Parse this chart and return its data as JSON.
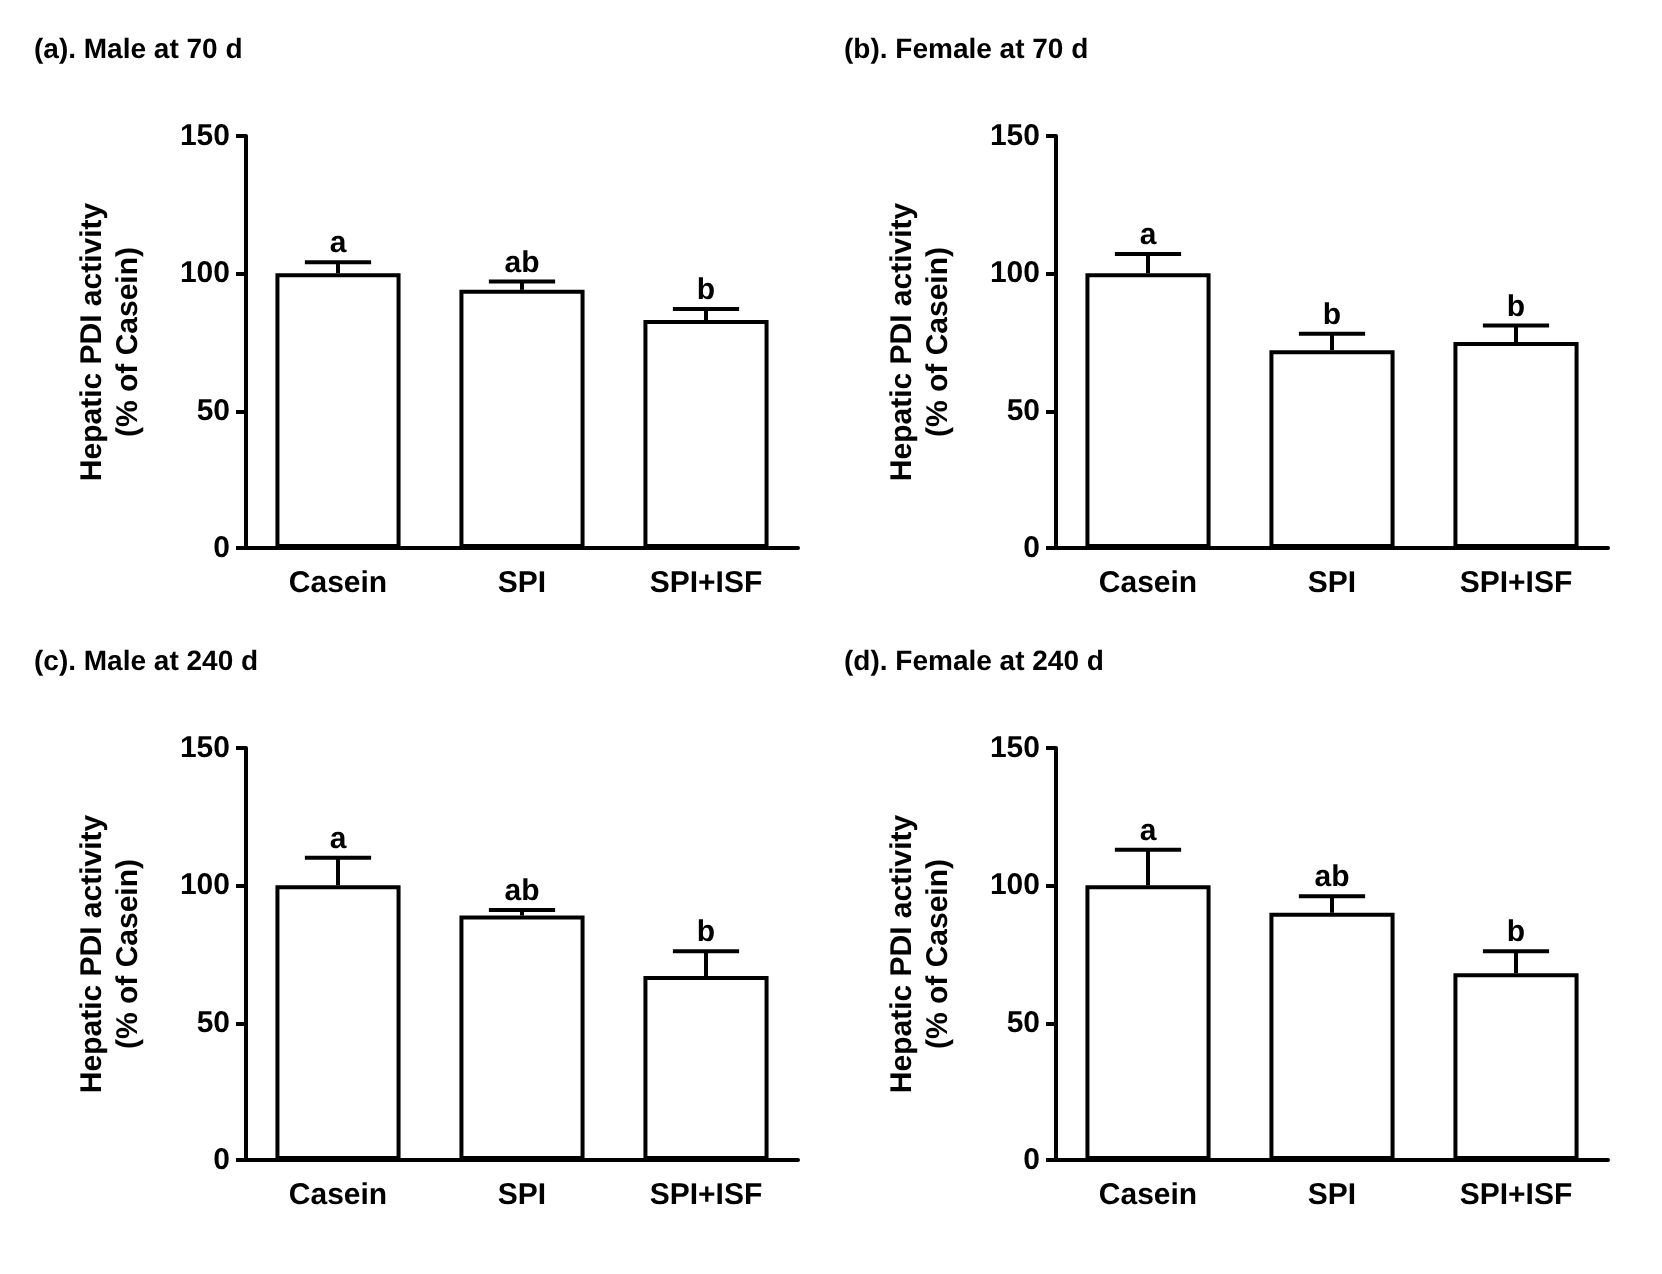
{
  "chart_data": [
    {
      "type": "bar",
      "title": "(a). Male at 70 d",
      "ylabel": "Hepatic PDI activity\n(% of Casein)",
      "categories": [
        "Casein",
        "SPI",
        "SPI+ISF"
      ],
      "series": [
        {
          "color": "#ffffff",
          "values": [
            100,
            94,
            83
          ],
          "errors": [
            [
              100,
              104
            ],
            [
              94,
              97
            ],
            [
              83,
              87
            ]
          ]
        }
      ],
      "ylim": [
        0,
        150
      ],
      "yticks": [
        0,
        50,
        100,
        150
      ],
      "grid": false,
      "annotations": [
        {
          "text": "a",
          "x": "Casein",
          "y": 104
        },
        {
          "text": "ab",
          "x": "SPI",
          "y": 97
        },
        {
          "text": "b",
          "x": "SPI+ISF",
          "y": 87
        }
      ]
    },
    {
      "type": "bar",
      "title": "(b). Female at 70 d",
      "ylabel": "Hepatic PDI activity\n(% of Casein)",
      "categories": [
        "Casein",
        "SPI",
        "SPI+ISF"
      ],
      "series": [
        {
          "color": "#ffffff",
          "values": [
            100,
            72,
            75
          ],
          "errors": [
            [
              100,
              107
            ],
            [
              72,
              78
            ],
            [
              75,
              81
            ]
          ]
        }
      ],
      "ylim": [
        0,
        150
      ],
      "yticks": [
        0,
        50,
        100,
        150
      ],
      "grid": false,
      "annotations": [
        {
          "text": "a",
          "x": "Casein",
          "y": 107
        },
        {
          "text": "b",
          "x": "SPI",
          "y": 78
        },
        {
          "text": "b",
          "x": "SPI+ISF",
          "y": 81
        }
      ]
    },
    {
      "type": "bar",
      "title": "(c). Male at 240 d",
      "ylabel": "Hepatic PDI activity\n(% of Casein)",
      "categories": [
        "Casein",
        "SPI",
        "SPI+ISF"
      ],
      "series": [
        {
          "color": "#ffffff",
          "values": [
            100,
            89,
            67
          ],
          "errors": [
            [
              100,
              110
            ],
            [
              89,
              91
            ],
            [
              67,
              76
            ]
          ]
        }
      ],
      "ylim": [
        0,
        150
      ],
      "yticks": [
        0,
        50,
        100,
        150
      ],
      "grid": false,
      "annotations": [
        {
          "text": "a",
          "x": "Casein",
          "y": 110
        },
        {
          "text": "ab",
          "x": "SPI",
          "y": 91
        },
        {
          "text": "b",
          "x": "SPI+ISF",
          "y": 76
        }
      ]
    },
    {
      "type": "bar",
      "title": "(d). Female at 240 d",
      "ylabel": "Hepatic PDI activity\n(% of Casein)",
      "categories": [
        "Casein",
        "SPI",
        "SPI+ISF"
      ],
      "series": [
        {
          "color": "#ffffff",
          "values": [
            100,
            90,
            68
          ],
          "errors": [
            [
              100,
              113
            ],
            [
              90,
              96
            ],
            [
              68,
              76
            ]
          ]
        }
      ],
      "ylim": [
        0,
        150
      ],
      "yticks": [
        0,
        50,
        100,
        150
      ],
      "grid": false,
      "annotations": [
        {
          "text": "a",
          "x": "Casein",
          "y": 113
        },
        {
          "text": "ab",
          "x": "SPI",
          "y": 96
        },
        {
          "text": "b",
          "x": "SPI+ISF",
          "y": 76
        }
      ]
    }
  ]
}
